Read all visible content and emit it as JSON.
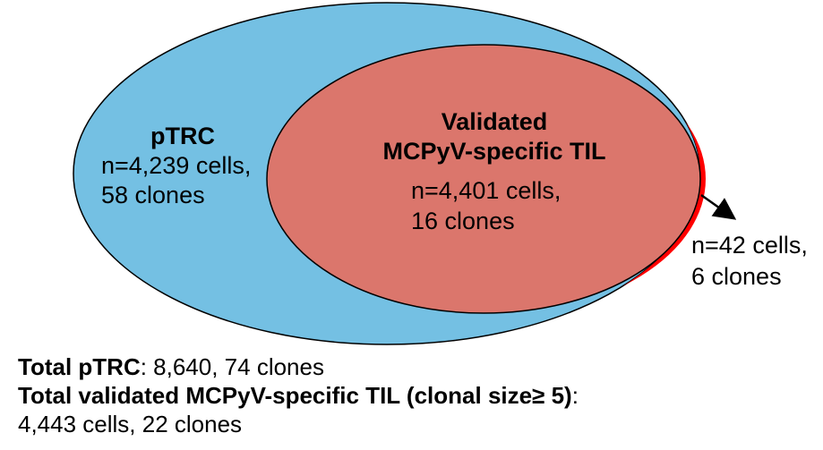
{
  "colors": {
    "outer_fill": "#74c0e3",
    "inner_fill": "#db766c",
    "overflow_fill": "#ff0000",
    "outline": "#000000",
    "arrow": "#000000"
  },
  "outer_set": {
    "name": "pTRC",
    "line1": "n=4,239 cells,",
    "line2": "58 clones"
  },
  "inner_set": {
    "name_line1": "Validated",
    "name_line2": "MCPyV-specific TIL",
    "line1": "n=4,401 cells,",
    "line2": "16 clones"
  },
  "outside_part": {
    "line1": "n=42 cells,",
    "line2": "6 clones"
  },
  "summary": {
    "total_ptrc_label": "Total pTRC",
    "total_ptrc_value": ": 8,640, 74 clones",
    "total_til_label_prefix": "Total validated MCPyV-specific TIL (clonal size",
    "total_til_symbol": "≥ 5",
    "total_til_label_suffix": ")",
    "total_til_colon": ":",
    "total_til_value": "4,443 cells, 22 clones"
  }
}
